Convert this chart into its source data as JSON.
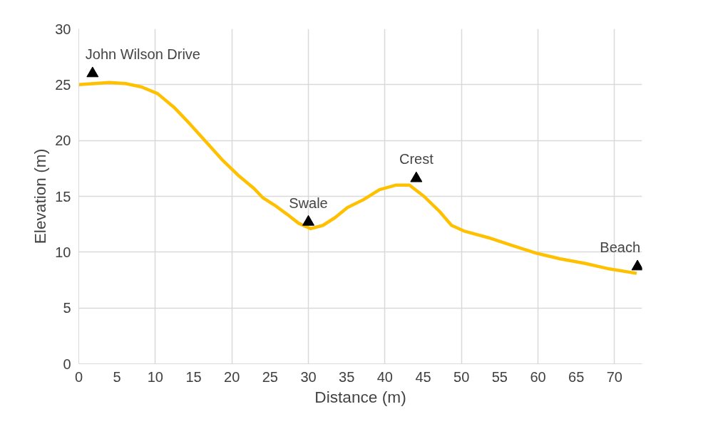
{
  "chart_data": {
    "type": "line",
    "xlabel": "Distance (m)",
    "ylabel": "Elevation (m)",
    "xlim": [
      0,
      73.6
    ],
    "ylim": [
      0,
      30
    ],
    "xticks": [
      0,
      5,
      10,
      15,
      20,
      25,
      30,
      35,
      40,
      45,
      50,
      55,
      60,
      65,
      70
    ],
    "yticks": [
      0,
      5,
      10,
      15,
      20,
      25,
      30
    ],
    "grid": true,
    "series": [
      {
        "color": "#ffc000",
        "line_style": "solid",
        "marker": "none",
        "x": [
          0,
          4,
          6.1,
          8.2,
          10.3,
          12.4,
          14.5,
          16.6,
          18.7,
          20.8,
          22.9,
          24,
          25.6,
          27.2,
          28.7,
          30.3,
          31.9,
          33.5,
          35.1,
          37.2,
          39.3,
          41.4,
          43.2,
          45.1,
          47.2,
          48.7,
          50.3,
          53.5,
          56.6,
          59.8,
          62.9,
          66.1,
          69.3,
          72.9
        ],
        "values": [
          25.0,
          25.2,
          25.1,
          24.8,
          24.2,
          23.0,
          21.5,
          19.9,
          18.3,
          16.9,
          15.7,
          14.9,
          14.2,
          13.4,
          12.6,
          12.1,
          12.4,
          13.1,
          14.0,
          14.7,
          15.6,
          16.0,
          16.0,
          15.0,
          13.6,
          12.4,
          11.9,
          11.3,
          10.6,
          9.9,
          9.4,
          9.0,
          8.5,
          8.1
        ]
      },
      {
        "type": "scatter",
        "color": "#000000",
        "marker": "triangle",
        "x": [
          1.8,
          30,
          44.1,
          73
        ],
        "values": [
          26.0,
          12.7,
          16.6,
          8.7
        ]
      }
    ],
    "annotations": [
      {
        "text": "John Wilson Drive",
        "x": 1.8,
        "y": 26.0
      },
      {
        "text": "Swale",
        "x": 30,
        "y": 12.7
      },
      {
        "text": "Crest",
        "x": 44.1,
        "y": 16.6
      },
      {
        "text": "Beach",
        "x": 73,
        "y": 8.7
      }
    ]
  }
}
